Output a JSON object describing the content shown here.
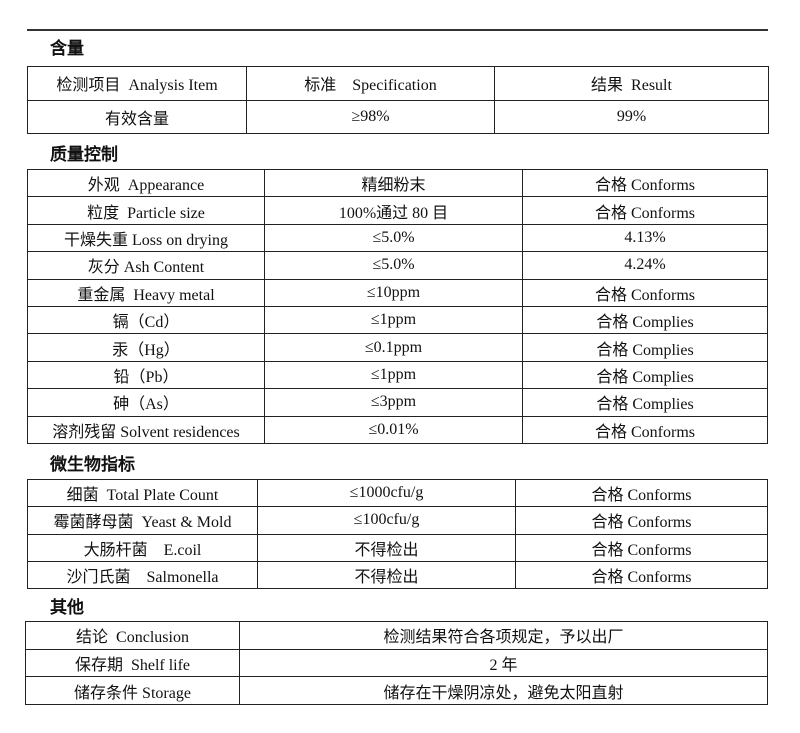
{
  "sections": [
    {
      "title": "含量",
      "rows": [
        [
          "检测项目  Analysis Item",
          "标准    Specification",
          "结果  Result"
        ],
        [
          "有效含量",
          "≥98%",
          "99%"
        ]
      ]
    },
    {
      "title": "质量控制",
      "rows": [
        [
          "外观  Appearance",
          "精细粉末",
          "合格 Conforms"
        ],
        [
          "粒度  Particle size",
          "100%通过 80 目",
          "合格 Conforms"
        ],
        [
          "干燥失重 Loss on drying",
          "≤5.0%",
          "4.13%"
        ],
        [
          "灰分 Ash Content",
          "≤5.0%",
          "4.24%"
        ],
        [
          "重金属  Heavy metal",
          "≤10ppm",
          "合格 Conforms"
        ],
        [
          "镉（Cd）",
          "≤1ppm",
          "合格 Complies"
        ],
        [
          "汞（Hg）",
          "≤0.1ppm",
          "合格 Complies"
        ],
        [
          "铅（Pb）",
          "≤1ppm",
          "合格 Complies"
        ],
        [
          "砷（As）",
          "≤3ppm",
          "合格 Complies"
        ],
        [
          "溶剂残留 Solvent residences",
          "≤0.01%",
          "合格 Conforms"
        ]
      ]
    },
    {
      "title": "微生物指标",
      "rows": [
        [
          "细菌  Total Plate Count",
          "≤1000cfu/g",
          "合格 Conforms"
        ],
        [
          "霉菌酵母菌  Yeast & Mold",
          "≤100cfu/g",
          "合格 Conforms"
        ],
        [
          "大肠杆菌    E.coil",
          "不得检出",
          "合格 Conforms"
        ],
        [
          "沙门氏菌    Salmonella",
          "不得检出",
          "合格 Conforms"
        ]
      ]
    },
    {
      "title": "其他",
      "rows": [
        [
          "结论  Conclusion",
          "检测结果符合各项规定，予以出厂"
        ],
        [
          "保存期  Shelf life",
          "2 年"
        ],
        [
          "储存条件 Storage",
          "储存在干燥阴凉处，避免太阳直射"
        ]
      ]
    }
  ]
}
